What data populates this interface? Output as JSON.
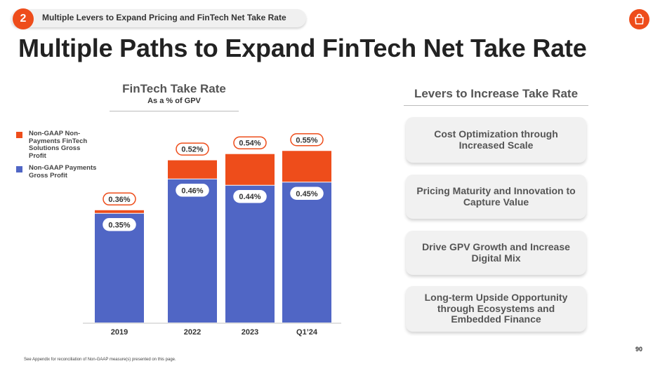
{
  "header": {
    "section_number": "2",
    "section_title": "Multiple Levers to Expand Pricing and FinTech Net Take Rate",
    "page_title": "Multiple Paths to Expand FinTech Net Take Rate"
  },
  "colors": {
    "accent": "#ee4d1b",
    "payments": "#5066c5"
  },
  "chart_data": {
    "type": "bar",
    "stacked": true,
    "title": "FinTech Take Rate",
    "subtitle": "As a % of GPV",
    "categories": [
      "2019",
      "2022",
      "2023",
      "Q1’24"
    ],
    "series": [
      {
        "name": "Non-GAAP Payments Gross Profit",
        "color": "#5066c5",
        "values": [
          0.35,
          0.46,
          0.44,
          0.45
        ],
        "labels": [
          "0.35%",
          "0.46%",
          "0.44%",
          "0.45%"
        ]
      },
      {
        "name": "Non-GAAP Non-Payments FinTech Solutions Gross Profit",
        "color": "#ee4d1b",
        "values": [
          0.01,
          0.06,
          0.1,
          0.1
        ]
      }
    ],
    "totals": [
      0.36,
      0.52,
      0.54,
      0.55
    ],
    "total_labels": [
      "0.36%",
      "0.52%",
      "0.54%",
      "0.55%"
    ],
    "legend_position": "left",
    "grid": false
  },
  "legend": {
    "items": [
      {
        "label": "Non-GAAP Non-Payments FinTech Solutions Gross Profit",
        "color": "#ee4d1b"
      },
      {
        "label": "Non-GAAP Payments Gross Profit",
        "color": "#5066c5"
      }
    ]
  },
  "levers": {
    "title": "Levers to Increase Take Rate",
    "items": [
      "Cost Optimization through Increased Scale",
      "Pricing Maturity and Innovation to Capture Value",
      "Drive GPV Growth and Increase Digital Mix",
      "Long-term Upside Opportunity through Ecosystems and Embedded Finance"
    ]
  },
  "footer": {
    "page_number": "90",
    "footnote": "See Appendix for reconciliation of Non-GAAP measure(s) presented on this page."
  }
}
